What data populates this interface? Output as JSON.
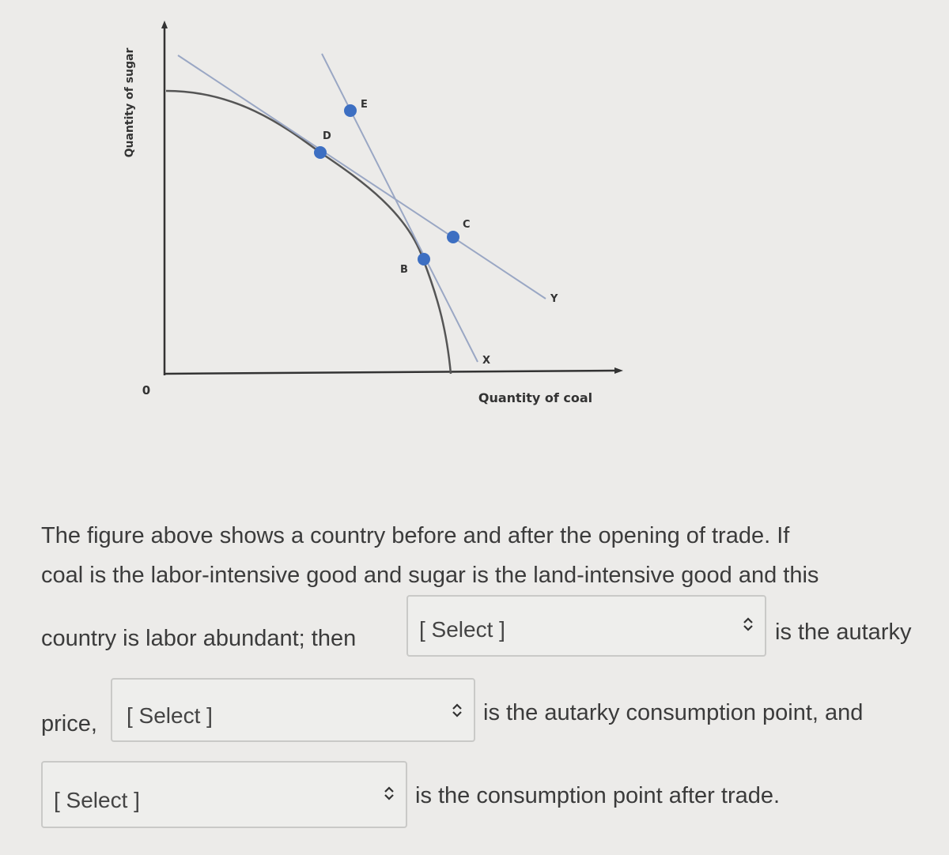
{
  "figure": {
    "y_axis_label": "Quantity of sugar",
    "x_axis_label": "Quantity of coal",
    "origin_label": "0",
    "point_labels": [
      "D",
      "E",
      "C",
      "B"
    ],
    "line_labels": [
      "X",
      "Y"
    ]
  },
  "question": {
    "line_1": "The figure above shows a country before and after the opening of trade. If",
    "line_2": "coal is the labor-intensive good and sugar is the land-intensive good and this",
    "line_3": "country is labor abundant; then",
    "select_1": "[ Select ]",
    "after_select_1": "is the autarky",
    "line_4": "price,",
    "select_2": "[ Select ]",
    "after_select_2": "is the autarky consumption point, and",
    "select_3": "[ Select ]",
    "after_select_3": "is the consumption point after trade."
  }
}
